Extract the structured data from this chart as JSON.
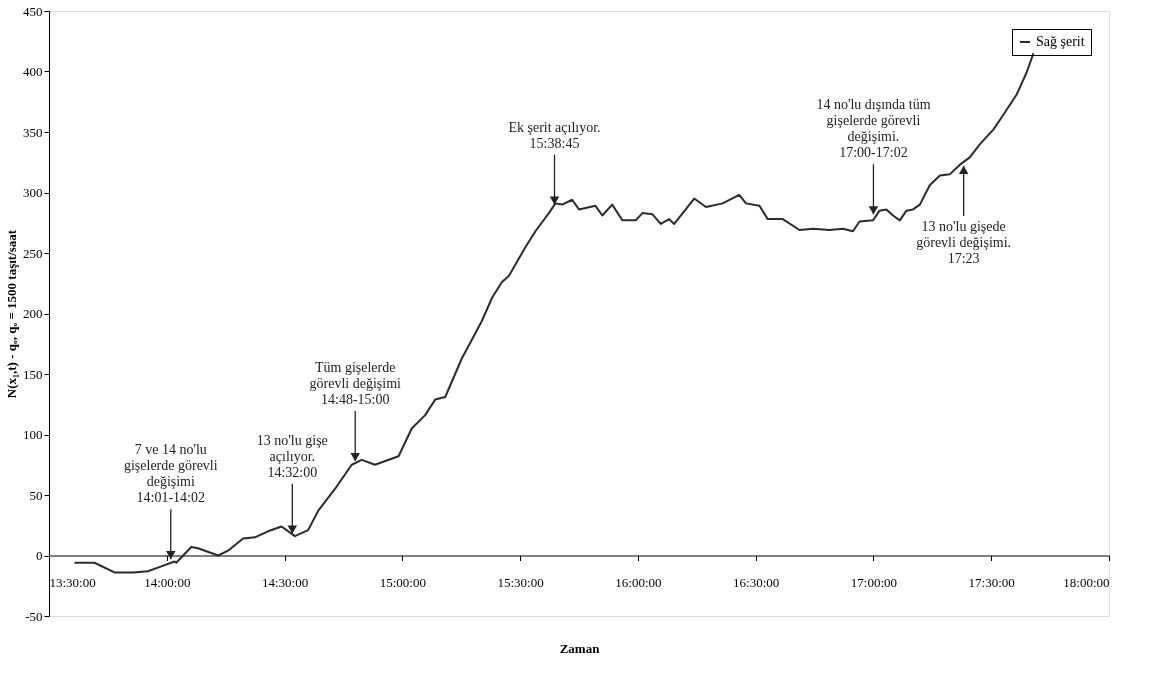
{
  "chart_data": {
    "type": "line",
    "xlabel": "Zaman",
    "ylabel": "N(x₁,t) - qₒ,  qₒ = 1500 taşıt/saat",
    "xlim": [
      13.5,
      18
    ],
    "ylim": [
      -50,
      450
    ],
    "xticks": [
      {
        "value": 13.5,
        "label": "13:30:00"
      },
      {
        "value": 14,
        "label": "14:00:00"
      },
      {
        "value": 14.5,
        "label": "14:30:00"
      },
      {
        "value": 15,
        "label": "15:00:00"
      },
      {
        "value": 15.5,
        "label": "15:30:00"
      },
      {
        "value": 16,
        "label": "16:00:00"
      },
      {
        "value": 16.5,
        "label": "16:30:00"
      },
      {
        "value": 17,
        "label": "17:00:00"
      },
      {
        "value": 17.5,
        "label": "17:30:00"
      },
      {
        "value": 18,
        "label": "18:00:00"
      }
    ],
    "yticks": [
      -50,
      0,
      50,
      100,
      150,
      200,
      250,
      300,
      350,
      400,
      450
    ],
    "grid": false,
    "legend": "top right",
    "marker": "none",
    "line_style": "solid",
    "series": [
      {
        "name": "Sağ şerit",
        "color": "#2b2b2b",
        "x": [
          13.608,
          13.693,
          13.778,
          13.856,
          13.92,
          13.977,
          14.033,
          14.04,
          14.104,
          14.133,
          14.218,
          14.26,
          14.324,
          14.374,
          14.43,
          14.487,
          14.544,
          14.6,
          14.643,
          14.714,
          14.785,
          14.828,
          14.884,
          14.984,
          15.04,
          15.097,
          15.14,
          15.182,
          15.253,
          15.289,
          15.338,
          15.381,
          15.423,
          15.452,
          15.523,
          15.565,
          15.622,
          15.65,
          15.679,
          15.721,
          15.75,
          15.82,
          15.849,
          15.891,
          15.934,
          15.991,
          16.019,
          16.062,
          16.097,
          16.133,
          16.154,
          16.203,
          16.239,
          16.289,
          16.36,
          16.43,
          16.459,
          16.516,
          16.551,
          16.615,
          16.686,
          16.743,
          16.814,
          16.87,
          16.913,
          16.941,
          16.998,
          17.026,
          17.055,
          17.083,
          17.112,
          17.14,
          17.168,
          17.197,
          17.239,
          17.282,
          17.324,
          17.367,
          17.409,
          17.452,
          17.509,
          17.551,
          17.608,
          17.65,
          17.679
        ],
        "values": [
          -6,
          -6,
          -14,
          -14,
          -13,
          -9,
          -5,
          -6,
          7,
          6,
          0,
          4,
          14,
          15,
          20,
          24,
          16,
          21,
          37,
          55,
          75,
          79,
          75,
          82,
          105,
          116,
          129,
          131,
          163,
          176,
          194,
          213,
          226,
          231,
          255,
          268,
          283,
          291,
          290,
          294,
          286,
          289,
          281,
          290,
          277,
          277,
          283,
          282,
          274,
          278,
          274,
          286,
          295,
          288,
          291,
          298,
          291,
          289,
          278,
          278,
          269,
          270,
          269,
          270,
          268,
          276,
          277,
          285,
          286,
          281,
          277,
          285,
          286,
          290,
          306,
          314,
          315,
          323,
          329,
          340,
          352,
          364,
          381,
          399,
          415
        ]
      }
    ],
    "annotations": [
      {
        "text": "7 ve 14 no'lu\ngişelerde görevli\ndeğişimi\n14:01-14:02",
        "x": 14.017,
        "y": -3
      },
      {
        "text": "13 no'lu gişe\naçılıyor.\n14:32:00",
        "x": 14.533,
        "y": 18
      },
      {
        "text": "Tüm gişelerde\ngörevli değişimi\n14:48-15:00",
        "x": 14.8,
        "y": 78
      },
      {
        "text": "Ek şerit açılıyor.\n15:38:45",
        "x": 15.646,
        "y": 290
      },
      {
        "text": "14 no'lu dışında tüm\ngişelerde görevli\ndeğişimi.\n17:00-17:02",
        "x": 17.0,
        "y": 282
      },
      {
        "text": "13 no'lu gişede\ngörevli değişimi.\n17:23",
        "x": 17.383,
        "y": 322
      }
    ]
  }
}
